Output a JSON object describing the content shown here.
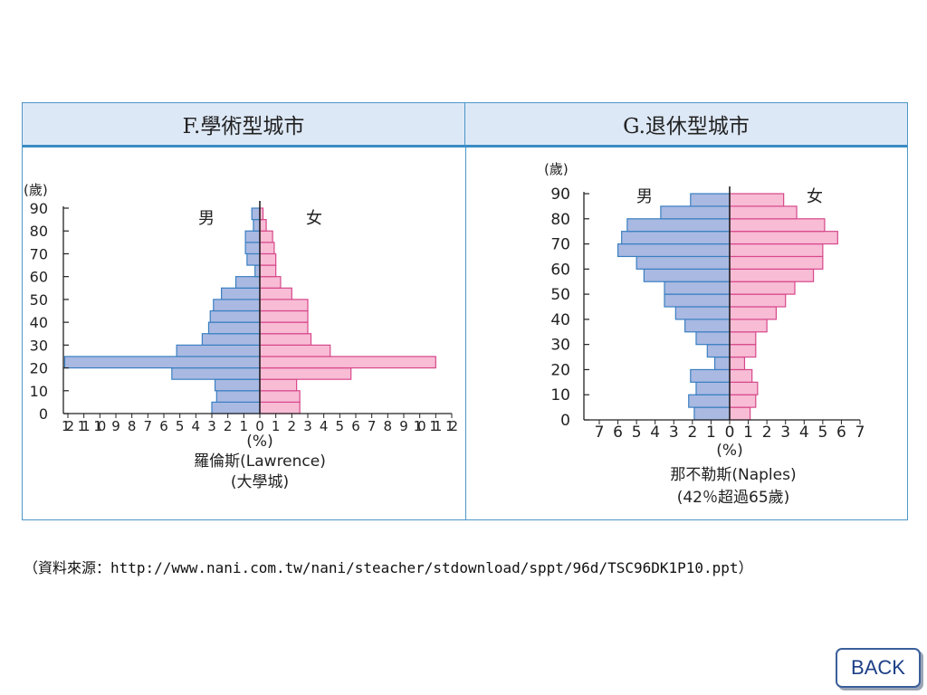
{
  "source_text": "（資料來源：http://www.nani.com.tw/nani/steacher/stdownload/sppt/96d/TSC96DK1P10.ppt）",
  "back_label": "BACK",
  "colors": {
    "male": "#a9b9e2",
    "female": "#f8bcd5",
    "male_stroke": "#3a7fc1",
    "female_stroke": "#d6488a",
    "header_bg": "#dde8f6",
    "border": "#4d97c8"
  },
  "chart_data": [
    {
      "type": "bar",
      "title": "F.學術型城市",
      "y_unit_label": "(歲)",
      "x_unit_label": "(%)",
      "male_label": "男",
      "female_label": "女",
      "caption_lines": [
        "羅倫斯(Lawrence)",
        "(大學城)"
      ],
      "y_ticks": [
        "0",
        "10",
        "20",
        "30",
        "40",
        "50",
        "60",
        "70",
        "80",
        "90"
      ],
      "x_tick_labels": [
        "12",
        "11",
        "10",
        "9",
        "8",
        "7",
        "6",
        "5",
        "4",
        "3",
        "2",
        "1",
        "0",
        "1",
        "2",
        "3",
        "4",
        "5",
        "6",
        "7",
        "8",
        "9",
        "10",
        "11",
        "12"
      ],
      "x_max": 12,
      "age_max": 90,
      "age_band": 5,
      "age_groups": [
        "0-4",
        "5-9",
        "10-14",
        "15-19",
        "20-24",
        "25-29",
        "30-34",
        "35-39",
        "40-44",
        "45-49",
        "50-54",
        "55-59",
        "60-64",
        "65-69",
        "70-74",
        "75-79",
        "80-84",
        "85+"
      ],
      "series": [
        {
          "name": "男",
          "values": [
            3.0,
            2.7,
            2.8,
            5.5,
            12.2,
            5.2,
            3.6,
            3.2,
            3.1,
            2.9,
            2.4,
            1.5,
            0.3,
            0.8,
            0.9,
            0.9,
            0.4,
            0.5
          ]
        },
        {
          "name": "女",
          "values": [
            2.5,
            2.5,
            2.3,
            5.7,
            11.0,
            4.4,
            3.2,
            3.0,
            3.0,
            3.0,
            2.0,
            1.3,
            1.0,
            1.0,
            0.9,
            0.8,
            0.4,
            0.2
          ]
        }
      ]
    },
    {
      "type": "bar",
      "title": "G.退休型城市",
      "y_unit_label": "(歲)",
      "x_unit_label": "(%)",
      "male_label": "男",
      "female_label": "女",
      "caption_lines": [
        "那不勒斯(Naples)",
        "(42％超過65歲)"
      ],
      "y_ticks": [
        "0",
        "10",
        "20",
        "30",
        "40",
        "50",
        "60",
        "70",
        "80",
        "90"
      ],
      "x_tick_labels": [
        "7",
        "6",
        "5",
        "4",
        "3",
        "2",
        "1",
        "0",
        "1",
        "2",
        "3",
        "4",
        "5",
        "6",
        "7"
      ],
      "x_max": 7,
      "age_max": 90,
      "age_band": 5,
      "age_groups": [
        "0-4",
        "5-9",
        "10-14",
        "15-19",
        "20-24",
        "25-29",
        "30-34",
        "35-39",
        "40-44",
        "45-49",
        "50-54",
        "55-59",
        "60-64",
        "65-69",
        "70-74",
        "75-79",
        "80-84",
        "85+"
      ],
      "series": [
        {
          "name": "男",
          "values": [
            1.9,
            2.2,
            1.8,
            2.1,
            0.8,
            1.2,
            1.8,
            2.4,
            2.9,
            3.5,
            3.5,
            4.6,
            5.0,
            6.0,
            5.8,
            5.5,
            3.7,
            2.1
          ]
        },
        {
          "name": "女",
          "values": [
            1.1,
            1.4,
            1.5,
            1.2,
            0.8,
            1.4,
            1.4,
            2.0,
            2.5,
            3.0,
            3.5,
            4.5,
            5.0,
            5.0,
            5.8,
            5.1,
            3.6,
            2.9
          ]
        }
      ]
    }
  ]
}
